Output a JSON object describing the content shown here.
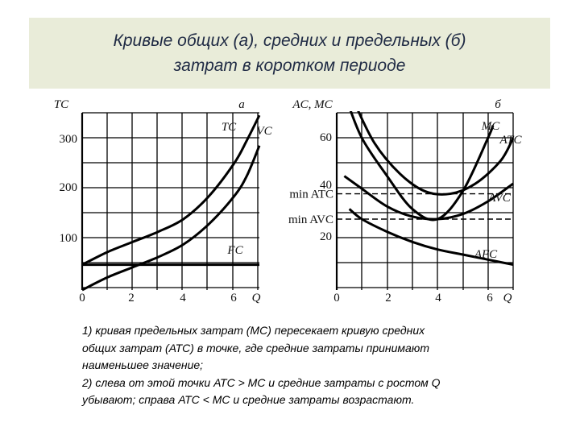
{
  "title": {
    "line1": "Кривые общих (а), средних и предельных (б)",
    "line2": "затрат в коротком периоде"
  },
  "notes": [
    "1) кривая предельных затрат (МС) пересекает кривую средних",
    "общих затрат (АТС) в точке, где средние затраты принимают",
    "наименьшее значение;",
    "2) слева от этой точки АТС > МС и средние затраты с ростом Q",
    "убывают; справа АТС < МС и средние затраты возрастают."
  ],
  "chart_data": [
    {
      "panel_label": "а",
      "type": "line",
      "ylabel": "TC",
      "xlabel": "Q",
      "xlim": [
        0,
        7
      ],
      "ylim": [
        0,
        350
      ],
      "x_ticks": [
        "0",
        "2",
        "4",
        "6"
      ],
      "y_ticks": [
        "100",
        "200",
        "300"
      ],
      "grid": true,
      "series": [
        {
          "name": "TC",
          "x": [
            0,
            1,
            2,
            3,
            4,
            5,
            6,
            6.5,
            7
          ],
          "y": [
            50,
            75,
            95,
            115,
            140,
            185,
            250,
            295,
            345
          ]
        },
        {
          "name": "VC",
          "x": [
            0,
            1,
            2,
            3,
            4,
            5,
            6,
            6.5,
            7
          ],
          "y": [
            0,
            25,
            45,
            65,
            90,
            130,
            185,
            225,
            285
          ]
        },
        {
          "name": "FC",
          "x": [
            0,
            7
          ],
          "y": [
            50,
            50
          ]
        }
      ]
    },
    {
      "panel_label": "б",
      "type": "line",
      "ylabel": "AC, MC",
      "xlabel": "Q",
      "xlim": [
        0,
        7
      ],
      "ylim": [
        0,
        70
      ],
      "x_ticks": [
        "0",
        "2",
        "4",
        "6"
      ],
      "y_ticks": [
        "20",
        "40",
        "60"
      ],
      "extra_y_labels": [
        "min ATC",
        "min AVC"
      ],
      "grid": true,
      "series": [
        {
          "name": "MC",
          "x": [
            0.4,
            1,
            2,
            3,
            4,
            5,
            6,
            6.2
          ],
          "y": [
            75,
            60,
            45,
            32,
            28,
            39,
            60,
            65
          ]
        },
        {
          "name": "ATC",
          "x": [
            0.7,
            1.5,
            2.5,
            3.5,
            4.5,
            5.5,
            6.5,
            7
          ],
          "y": [
            74,
            58,
            46,
            39,
            38,
            42,
            51,
            60
          ]
        },
        {
          "name": "AVC",
          "x": [
            0.3,
            1,
            2,
            3,
            4,
            5,
            6,
            7
          ],
          "y": [
            45,
            40,
            33,
            29,
            28,
            30,
            35,
            42
          ]
        },
        {
          "name": "AFC",
          "x": [
            0.5,
            1,
            2,
            3,
            4,
            5,
            6,
            7
          ],
          "y": [
            32,
            28,
            23,
            19,
            16,
            14,
            12,
            10
          ]
        }
      ],
      "reference_lines": [
        {
          "label": "min ATC",
          "y": 38,
          "style": "dashed"
        },
        {
          "label": "min AVC",
          "y": 28,
          "style": "dashed"
        }
      ]
    }
  ]
}
